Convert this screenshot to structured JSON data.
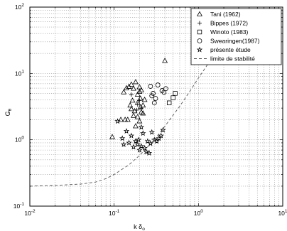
{
  "chart_data": {
    "type": "scatter",
    "title": "",
    "xlabel": "k δ",
    "xlabel_subscript": "o",
    "ylabel": "G",
    "ylabel_subscript": "θ",
    "xscale": "log",
    "yscale": "log",
    "xlim": [
      0.01,
      10
    ],
    "ylim": [
      0.1,
      100
    ],
    "grid": true,
    "legend_position": "top-right",
    "x_ticks": [
      {
        "value": 0.01,
        "base": "10",
        "exp": "-2"
      },
      {
        "value": 0.1,
        "base": "10",
        "exp": "-1"
      },
      {
        "value": 1,
        "base": "10",
        "exp": "0"
      },
      {
        "value": 10,
        "base": "10",
        "exp": "1"
      }
    ],
    "y_ticks": [
      {
        "value": 0.1,
        "base": "10",
        "exp": "-1"
      },
      {
        "value": 1,
        "base": "10",
        "exp": "0"
      },
      {
        "value": 10,
        "base": "10",
        "exp": "1"
      },
      {
        "value": 100,
        "base": "10",
        "exp": "2"
      }
    ],
    "series": [
      {
        "name": "Tani (1962)",
        "marker": "triangle",
        "points": [
          [
            0.095,
            1.1
          ],
          [
            0.12,
            2.0
          ],
          [
            0.135,
            2.0
          ],
          [
            0.13,
            5.2
          ],
          [
            0.14,
            6.0
          ],
          [
            0.15,
            6.3
          ],
          [
            0.16,
            6.8
          ],
          [
            0.17,
            5.9
          ],
          [
            0.18,
            7.4
          ],
          [
            0.19,
            4.8
          ],
          [
            0.2,
            6.2
          ],
          [
            0.21,
            5.6
          ],
          [
            0.205,
            4.2
          ],
          [
            0.19,
            3.6
          ],
          [
            0.205,
            3.1
          ],
          [
            0.21,
            2.6
          ],
          [
            0.17,
            2.3
          ],
          [
            0.19,
            2.2
          ],
          [
            0.22,
            2.5
          ],
          [
            0.16,
            2.9
          ],
          [
            0.145,
            2.0
          ],
          [
            0.23,
            4.0
          ],
          [
            0.165,
            3.9
          ],
          [
            0.155,
            3.3
          ],
          [
            0.22,
            3.3
          ],
          [
            0.175,
            2.7
          ],
          [
            0.2,
            5.3
          ],
          [
            0.4,
            15.5
          ],
          [
            0.2,
            1.9
          ],
          [
            0.18,
            1.6
          ]
        ]
      },
      {
        "name": "Bippes (1972)",
        "marker": "plus",
        "points": [
          [
            0.16,
            4.8
          ],
          [
            0.19,
            3.4
          ],
          [
            0.2,
            3.9
          ],
          [
            0.185,
            2.8
          ],
          [
            0.21,
            3.0
          ]
        ]
      },
      {
        "name": "Winoto (1983)",
        "marker": "square",
        "points": [
          [
            0.45,
            3.6
          ],
          [
            0.5,
            4.3
          ],
          [
            0.53,
            5.0
          ]
        ]
      },
      {
        "name": "Swearingen(1987)",
        "marker": "circle",
        "points": [
          [
            0.27,
            6.4
          ],
          [
            0.29,
            5.0
          ],
          [
            0.31,
            4.2
          ],
          [
            0.33,
            6.7
          ],
          [
            0.37,
            5.5
          ],
          [
            0.39,
            5.2
          ],
          [
            0.41,
            5.9
          ],
          [
            0.28,
            4.6
          ],
          [
            0.3,
            3.6
          ]
        ]
      },
      {
        "name": "présente étude",
        "marker": "star",
        "points": [
          [
            0.11,
            1.9
          ],
          [
            0.14,
            1.35
          ],
          [
            0.16,
            1.15
          ],
          [
            0.15,
            0.9
          ],
          [
            0.18,
            0.95
          ],
          [
            0.19,
            0.85
          ],
          [
            0.21,
            0.8
          ],
          [
            0.23,
            0.75
          ],
          [
            0.25,
            0.95
          ],
          [
            0.27,
            0.88
          ],
          [
            0.3,
            1.0
          ],
          [
            0.32,
            0.95
          ],
          [
            0.34,
            1.05
          ],
          [
            0.36,
            1.15
          ],
          [
            0.24,
            0.66
          ],
          [
            0.26,
            0.63
          ],
          [
            0.2,
            0.7
          ],
          [
            0.13,
            0.85
          ],
          [
            0.17,
            0.78
          ],
          [
            0.22,
            1.25
          ],
          [
            0.28,
            1.3
          ],
          [
            0.38,
            1.4
          ],
          [
            0.21,
            1.55
          ],
          [
            0.125,
            1.05
          ],
          [
            0.195,
            1.0
          ]
        ]
      },
      {
        "name": "limite de stabilité",
        "marker": "dashed-line",
        "points": [
          [
            0.01,
            0.2
          ],
          [
            0.02,
            0.205
          ],
          [
            0.04,
            0.215
          ],
          [
            0.06,
            0.23
          ],
          [
            0.08,
            0.26
          ],
          [
            0.1,
            0.3
          ],
          [
            0.15,
            0.42
          ],
          [
            0.2,
            0.58
          ],
          [
            0.3,
            1.0
          ],
          [
            0.4,
            1.6
          ],
          [
            0.6,
            3.2
          ],
          [
            0.8,
            5.5
          ],
          [
            1.0,
            8.5
          ],
          [
            1.3,
            14
          ],
          [
            1.8,
            27
          ],
          [
            2.5,
            55
          ],
          [
            3.2,
            100
          ]
        ]
      }
    ]
  }
}
